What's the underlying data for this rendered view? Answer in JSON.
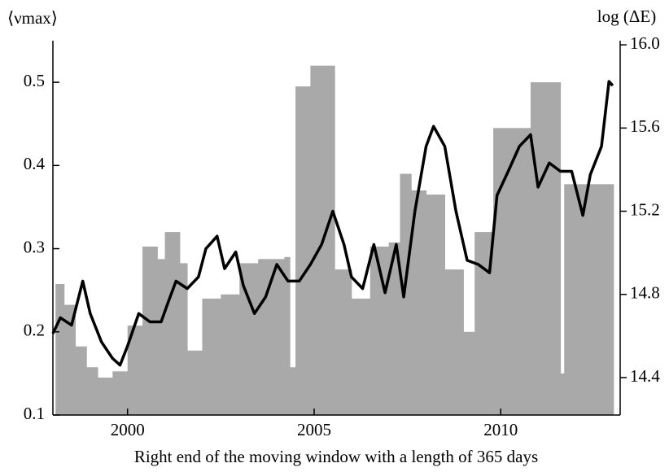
{
  "chart_data": {
    "type": "bar-line",
    "ylabel": "⟨νmax⟩",
    "y2label": "log (ΔE)",
    "xlabel": "Right end of the moving window with a length of 365 days",
    "xlim": [
      1998,
      2013.2
    ],
    "xticks": [
      2000,
      2005,
      2010
    ],
    "ylim": [
      0.1,
      0.55
    ],
    "yticks": [
      0.1,
      0.2,
      0.3,
      0.4,
      0.5
    ],
    "y2lim": [
      14.22,
      16.02
    ],
    "y2ticks": [
      14.4,
      14.8,
      15.2,
      15.6,
      {
        "value": 16,
        "label": "16.0"
      }
    ],
    "series": [
      {
        "type": "bar",
        "axis": "y2",
        "color": "#a9a9a9",
        "x": [
          1998.07,
          1998.3,
          1998.6,
          1998.9,
          1999.2,
          1999.6,
          2000.0,
          2000.4,
          2000.8,
          2001.0,
          2001.4,
          2001.6,
          2002.0,
          2002.5,
          2003.0,
          2003.5,
          2004.2,
          2004.35,
          2004.5,
          2004.9,
          2005.55,
          2006.0,
          2006.5,
          2007.0,
          2007.3,
          2007.6,
          2008.0,
          2008.5,
          2009.0,
          2009.3,
          2009.8,
          2010.8,
          2011.6,
          2011.7,
          2013.0
        ],
        "values": [
          14.85,
          14.75,
          14.55,
          14.45,
          14.4,
          14.43,
          14.65,
          15.03,
          14.97,
          15.1,
          14.95,
          14.53,
          14.78,
          14.8,
          14.95,
          14.97,
          14.98,
          14.45,
          15.8,
          15.9,
          14.92,
          14.78,
          15.03,
          15.05,
          15.38,
          15.3,
          15.28,
          14.92,
          14.62,
          15.1,
          15.6,
          15.82,
          14.42,
          15.33,
          15.33
        ]
      },
      {
        "type": "line",
        "axis": "y",
        "color": "#000000",
        "x": [
          1998.0,
          1998.2,
          1998.5,
          1998.8,
          1999.0,
          1999.3,
          1999.6,
          1999.8,
          2000.0,
          2000.3,
          2000.6,
          2000.9,
          2001.1,
          2001.3,
          2001.6,
          2001.9,
          2002.1,
          2002.4,
          2002.6,
          2002.9,
          2003.1,
          2003.4,
          2003.7,
          2004.0,
          2004.3,
          2004.6,
          2004.9,
          2005.2,
          2005.5,
          2005.8,
          2006.0,
          2006.3,
          2006.6,
          2006.9,
          2007.2,
          2007.4,
          2007.7,
          2008.0,
          2008.2,
          2008.5,
          2008.8,
          2009.1,
          2009.4,
          2009.7,
          2009.9,
          2010.2,
          2010.5,
          2010.8,
          2011.0,
          2011.3,
          2011.6,
          2011.9,
          2012.2,
          2012.4,
          2012.7,
          2012.9,
          2013.0
        ],
        "values": [
          0.198,
          0.217,
          0.208,
          0.261,
          0.222,
          0.188,
          0.168,
          0.16,
          0.183,
          0.222,
          0.212,
          0.212,
          0.237,
          0.261,
          0.252,
          0.266,
          0.3,
          0.315,
          0.276,
          0.296,
          0.256,
          0.222,
          0.242,
          0.281,
          0.261,
          0.261,
          0.281,
          0.305,
          0.345,
          0.305,
          0.266,
          0.252,
          0.305,
          0.247,
          0.305,
          0.242,
          0.345,
          0.423,
          0.447,
          0.423,
          0.345,
          0.286,
          0.281,
          0.271,
          0.364,
          0.393,
          0.423,
          0.437,
          0.374,
          0.403,
          0.393,
          0.393,
          0.34,
          0.389,
          0.423,
          0.501,
          0.496
        ]
      }
    ]
  }
}
